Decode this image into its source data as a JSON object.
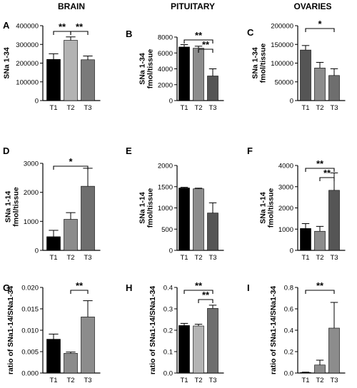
{
  "column_titles": [
    "BRAIN",
    "PITUITARY",
    "OVARIES"
  ],
  "chart_data": [
    {
      "panel": "A",
      "type": "bar",
      "categories": [
        "T1",
        "T2",
        "T3"
      ],
      "values": [
        220000,
        322000,
        218000
      ],
      "errors": [
        30000,
        18000,
        20000
      ],
      "ylabel": "SNa 1-34",
      "ylim": [
        0,
        400000
      ],
      "yticks": [
        0,
        100000,
        200000,
        300000,
        400000
      ],
      "significance": [
        {
          "from": "T1",
          "to": "T2",
          "label": "**"
        },
        {
          "from": "T2",
          "to": "T3",
          "label": "**"
        }
      ]
    },
    {
      "panel": "B",
      "type": "bar",
      "categories": [
        "T1",
        "T2",
        "T3"
      ],
      "values": [
        6750,
        6600,
        3100
      ],
      "errors": [
        300,
        250,
        900
      ],
      "ylabel": "SNa 1-34\nfmol/tissue",
      "ylim": [
        0,
        8000
      ],
      "yticks": [
        0,
        2000,
        4000,
        6000,
        8000
      ],
      "significance": [
        {
          "from": "T1",
          "to": "T3",
          "label": "**"
        },
        {
          "from": "T2",
          "to": "T3",
          "label": "**"
        }
      ]
    },
    {
      "panel": "C",
      "type": "bar",
      "categories": [
        "T1",
        "T2",
        "T3"
      ],
      "values": [
        135000,
        87000,
        67000
      ],
      "errors": [
        12000,
        15000,
        18000
      ],
      "ylabel": "SNa 1-34\nfmol/tissue",
      "ylim": [
        0,
        200000
      ],
      "yticks": [
        0,
        50000,
        100000,
        150000,
        200000
      ],
      "significance": [
        {
          "from": "T1",
          "to": "T3",
          "label": "*"
        }
      ]
    },
    {
      "panel": "D",
      "type": "bar",
      "categories": [
        "T1",
        "T2",
        "T3"
      ],
      "values": [
        470,
        1070,
        2210
      ],
      "errors": [
        220,
        230,
        620
      ],
      "ylabel": "SNa 1-14\nfmol/tissue",
      "ylim": [
        0,
        3000
      ],
      "yticks": [
        0,
        1000,
        2000,
        3000
      ],
      "significance": [
        {
          "from": "T1",
          "to": "T3",
          "label": "*"
        }
      ]
    },
    {
      "panel": "E",
      "type": "bar",
      "categories": [
        "T1",
        "T2",
        "T3"
      ],
      "values": [
        1470,
        1450,
        880
      ],
      "errors": [
        15,
        15,
        240
      ],
      "ylabel": "SNa 1-14\nfmol/tissue",
      "ylim": [
        0,
        2000
      ],
      "yticks": [
        0,
        500,
        1000,
        1500,
        2000
      ],
      "significance": []
    },
    {
      "panel": "F",
      "type": "bar",
      "categories": [
        "T1",
        "T2",
        "T3"
      ],
      "values": [
        1030,
        900,
        2830
      ],
      "errors": [
        230,
        230,
        820
      ],
      "ylabel": "SNa 1-14\nfmol/tissue",
      "ylim": [
        0,
        4000
      ],
      "yticks": [
        0,
        1000,
        2000,
        3000,
        4000
      ],
      "significance": [
        {
          "from": "T1",
          "to": "T3",
          "label": "**"
        },
        {
          "from": "T2",
          "to": "T3",
          "label": "**"
        }
      ]
    },
    {
      "panel": "G",
      "type": "bar",
      "categories": [
        "T1",
        "T2",
        "T3"
      ],
      "values": [
        0.0079,
        0.0046,
        0.0131
      ],
      "errors": [
        0.0012,
        0.0003,
        0.0038
      ],
      "ylabel": "ratio of SNa1-14/SNa1-34",
      "ylim": [
        0,
        0.02
      ],
      "yticks": [
        0,
        0.005,
        0.01,
        0.015,
        0.02
      ],
      "ytick_labels": [
        "0.000",
        "0.005",
        "0.010",
        "0.015",
        "0.020"
      ],
      "significance": [
        {
          "from": "T2",
          "to": "T3",
          "label": "**"
        }
      ]
    },
    {
      "panel": "H",
      "type": "bar",
      "categories": [
        "T1",
        "T2",
        "T3"
      ],
      "values": [
        0.222,
        0.22,
        0.302
      ],
      "errors": [
        0.01,
        0.008,
        0.015
      ],
      "ylabel": "ratio of SNa1-14/SNa1-34",
      "ylim": [
        0,
        0.4
      ],
      "yticks": [
        0,
        0.1,
        0.2,
        0.3,
        0.4
      ],
      "ytick_labels": [
        "0.0",
        "0.1",
        "0.2",
        "0.3",
        "0.4"
      ],
      "significance": [
        {
          "from": "T1",
          "to": "T3",
          "label": "**"
        },
        {
          "from": "T2",
          "to": "T3",
          "label": "**"
        }
      ]
    },
    {
      "panel": "I",
      "type": "bar",
      "categories": [
        "T1",
        "T2",
        "T3"
      ],
      "values": [
        0.005,
        0.075,
        0.42
      ],
      "errors": [
        0.003,
        0.045,
        0.24
      ],
      "ylabel": "ratio of SNa1-14/SNa1-34",
      "ylim": [
        0,
        0.8
      ],
      "yticks": [
        0,
        0.2,
        0.4,
        0.6,
        0.8
      ],
      "ytick_labels": [
        "0.0",
        "0.2",
        "0.4",
        "0.6",
        "0.8"
      ],
      "significance": [
        {
          "from": "T1",
          "to": "T3",
          "label": "**"
        }
      ]
    }
  ],
  "bar_colors": [
    "#000000",
    "#b3b3b3",
    "#7a7a7a"
  ],
  "panel_colors": {
    "B": [
      "#000000",
      "#8c8c8c",
      "#555555"
    ],
    "C": [
      "#555555",
      "#8c8c8c",
      "#6e6e6e"
    ],
    "D": [
      "#000000",
      "#8c8c8c",
      "#6e6e6e"
    ],
    "E": [
      "#000000",
      "#8c8c8c",
      "#555555"
    ],
    "F": [
      "#000000",
      "#8c8c8c",
      "#555555"
    ],
    "G": [
      "#000000",
      "#8c8c8c",
      "#8c8c8c"
    ],
    "H": [
      "#000000",
      "#b3b3b3",
      "#6e6e6e"
    ],
    "I": [
      "#000000",
      "#8c8c8c",
      "#8c8c8c"
    ]
  }
}
